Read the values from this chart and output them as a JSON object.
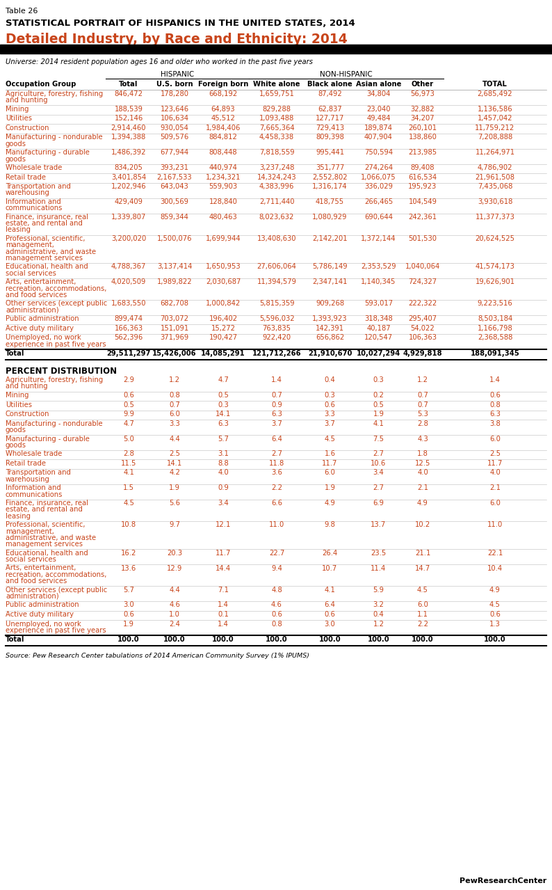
{
  "title_line1": "Table 26",
  "title_line2": "STATISTICAL PORTRAIT OF HISPANICS IN THE UNITED STATES, 2014",
  "title_line3": "Detailed Industry, by Race and Ethnicity: 2014",
  "universe_text": "Universe: 2014 resident population ages 16 and older who worked in the past five years",
  "col_headers": [
    "Occupation Group",
    "Total",
    "U.S. born",
    "Foreign born",
    "White alone",
    "Black alone",
    "Asian alone",
    "Other",
    "TOTAL"
  ],
  "group_header_hispanic": "HISPANIC",
  "group_header_nonhispanic": "NON-HISPANIC",
  "rows": [
    [
      "Agriculture, forestry, fishing\nand hunting",
      "846,472",
      "178,280",
      "668,192",
      "1,659,751",
      "87,492",
      "34,804",
      "56,973",
      "2,685,492"
    ],
    [
      "Mining",
      "188,539",
      "123,646",
      "64,893",
      "829,288",
      "62,837",
      "23,040",
      "32,882",
      "1,136,586"
    ],
    [
      "Utilities",
      "152,146",
      "106,634",
      "45,512",
      "1,093,488",
      "127,717",
      "49,484",
      "34,207",
      "1,457,042"
    ],
    [
      "Construction",
      "2,914,460",
      "930,054",
      "1,984,406",
      "7,665,364",
      "729,413",
      "189,874",
      "260,101",
      "11,759,212"
    ],
    [
      "Manufacturing - nondurable\ngoods",
      "1,394,388",
      "509,576",
      "884,812",
      "4,458,338",
      "809,398",
      "407,904",
      "138,860",
      "7,208,888"
    ],
    [
      "Manufacturing - durable\ngoods",
      "1,486,392",
      "677,944",
      "808,448",
      "7,818,559",
      "995,441",
      "750,594",
      "213,985",
      "11,264,971"
    ],
    [
      "Wholesale trade",
      "834,205",
      "393,231",
      "440,974",
      "3,237,248",
      "351,777",
      "274,264",
      "89,408",
      "4,786,902"
    ],
    [
      "Retail trade",
      "3,401,854",
      "2,167,533",
      "1,234,321",
      "14,324,243",
      "2,552,802",
      "1,066,075",
      "616,534",
      "21,961,508"
    ],
    [
      "Transportation and\nwarehousing",
      "1,202,946",
      "643,043",
      "559,903",
      "4,383,996",
      "1,316,174",
      "336,029",
      "195,923",
      "7,435,068"
    ],
    [
      "Information and\ncommunications",
      "429,409",
      "300,569",
      "128,840",
      "2,711,440",
      "418,755",
      "266,465",
      "104,549",
      "3,930,618"
    ],
    [
      "Finance, insurance, real\nestate, and rental and\nleasing",
      "1,339,807",
      "859,344",
      "480,463",
      "8,023,632",
      "1,080,929",
      "690,644",
      "242,361",
      "11,377,373"
    ],
    [
      "Professional, scientific,\nmanagement,\nadministrative, and waste\nmanagement services",
      "3,200,020",
      "1,500,076",
      "1,699,944",
      "13,408,630",
      "2,142,201",
      "1,372,144",
      "501,530",
      "20,624,525"
    ],
    [
      "Educational, health and\nsocial services",
      "4,788,367",
      "3,137,414",
      "1,650,953",
      "27,606,064",
      "5,786,149",
      "2,353,529",
      "1,040,064",
      "41,574,173"
    ],
    [
      "Arts, entertainment,\nrecreation, accommodations,\nand food services",
      "4,020,509",
      "1,989,822",
      "2,030,687",
      "11,394,579",
      "2,347,141",
      "1,140,345",
      "724,327",
      "19,626,901"
    ],
    [
      "Other services (except public\nadministration)",
      "1,683,550",
      "682,708",
      "1,000,842",
      "5,815,359",
      "909,268",
      "593,017",
      "222,322",
      "9,223,516"
    ],
    [
      "Public administration",
      "899,474",
      "703,072",
      "196,402",
      "5,596,032",
      "1,393,923",
      "318,348",
      "295,407",
      "8,503,184"
    ],
    [
      "Active duty military",
      "166,363",
      "151,091",
      "15,272",
      "763,835",
      "142,391",
      "40,187",
      "54,022",
      "1,166,798"
    ],
    [
      "Unemployed, no work\nexperience in past five years",
      "562,396",
      "371,969",
      "190,427",
      "922,420",
      "656,862",
      "120,547",
      "106,363",
      "2,368,588"
    ]
  ],
  "total_row": [
    "Total",
    "29,511,297",
    "15,426,006",
    "14,085,291",
    "121,712,266",
    "21,910,670",
    "10,027,294",
    "4,929,818",
    "188,091,345"
  ],
  "pct_section_header": "PERCENT DISTRIBUTION",
  "pct_rows": [
    [
      "Agriculture, forestry, fishing\nand hunting",
      "2.9",
      "1.2",
      "4.7",
      "1.4",
      "0.4",
      "0.3",
      "1.2",
      "1.4"
    ],
    [
      "Mining",
      "0.6",
      "0.8",
      "0.5",
      "0.7",
      "0.3",
      "0.2",
      "0.7",
      "0.6"
    ],
    [
      "Utilities",
      "0.5",
      "0.7",
      "0.3",
      "0.9",
      "0.6",
      "0.5",
      "0.7",
      "0.8"
    ],
    [
      "Construction",
      "9.9",
      "6.0",
      "14.1",
      "6.3",
      "3.3",
      "1.9",
      "5.3",
      "6.3"
    ],
    [
      "Manufacturing - nondurable\ngoods",
      "4.7",
      "3.3",
      "6.3",
      "3.7",
      "3.7",
      "4.1",
      "2.8",
      "3.8"
    ],
    [
      "Manufacturing - durable\ngoods",
      "5.0",
      "4.4",
      "5.7",
      "6.4",
      "4.5",
      "7.5",
      "4.3",
      "6.0"
    ],
    [
      "Wholesale trade",
      "2.8",
      "2.5",
      "3.1",
      "2.7",
      "1.6",
      "2.7",
      "1.8",
      "2.5"
    ],
    [
      "Retail trade",
      "11.5",
      "14.1",
      "8.8",
      "11.8",
      "11.7",
      "10.6",
      "12.5",
      "11.7"
    ],
    [
      "Transportation and\nwarehousing",
      "4.1",
      "4.2",
      "4.0",
      "3.6",
      "6.0",
      "3.4",
      "4.0",
      "4.0"
    ],
    [
      "Information and\ncommunications",
      "1.5",
      "1.9",
      "0.9",
      "2.2",
      "1.9",
      "2.7",
      "2.1",
      "2.1"
    ],
    [
      "Finance, insurance, real\nestate, and rental and\nleasing",
      "4.5",
      "5.6",
      "3.4",
      "6.6",
      "4.9",
      "6.9",
      "4.9",
      "6.0"
    ],
    [
      "Professional, scientific,\nmanagement,\nadministrative, and waste\nmanagement services",
      "10.8",
      "9.7",
      "12.1",
      "11.0",
      "9.8",
      "13.7",
      "10.2",
      "11.0"
    ],
    [
      "Educational, health and\nsocial services",
      "16.2",
      "20.3",
      "11.7",
      "22.7",
      "26.4",
      "23.5",
      "21.1",
      "22.1"
    ],
    [
      "Arts, entertainment,\nrecreation, accommodations,\nand food services",
      "13.6",
      "12.9",
      "14.4",
      "9.4",
      "10.7",
      "11.4",
      "14.7",
      "10.4"
    ],
    [
      "Other services (except public\nadministration)",
      "5.7",
      "4.4",
      "7.1",
      "4.8",
      "4.1",
      "5.9",
      "4.5",
      "4.9"
    ],
    [
      "Public administration",
      "3.0",
      "4.6",
      "1.4",
      "4.6",
      "6.4",
      "3.2",
      "6.0",
      "4.5"
    ],
    [
      "Active duty military",
      "0.6",
      "1.0",
      "0.1",
      "0.6",
      "0.6",
      "0.4",
      "1.1",
      "0.6"
    ],
    [
      "Unemployed, no work\nexperience in past five years",
      "1.9",
      "2.4",
      "1.4",
      "0.8",
      "3.0",
      "1.2",
      "2.2",
      "1.3"
    ]
  ],
  "pct_total_row": [
    "Total",
    "100.0",
    "100.0",
    "100.0",
    "100.0",
    "100.0",
    "100.0",
    "100.0",
    "100.0"
  ],
  "source_text": "Source: Pew Research Center tabulations of 2014 American Community Survey (1% IPUMS)",
  "footer_text": "PewResearchCenter",
  "orange_color": "#c8441a",
  "black_color": "#000000",
  "gray_line_color": "#bbbbbb",
  "bg_color": "#ffffff"
}
